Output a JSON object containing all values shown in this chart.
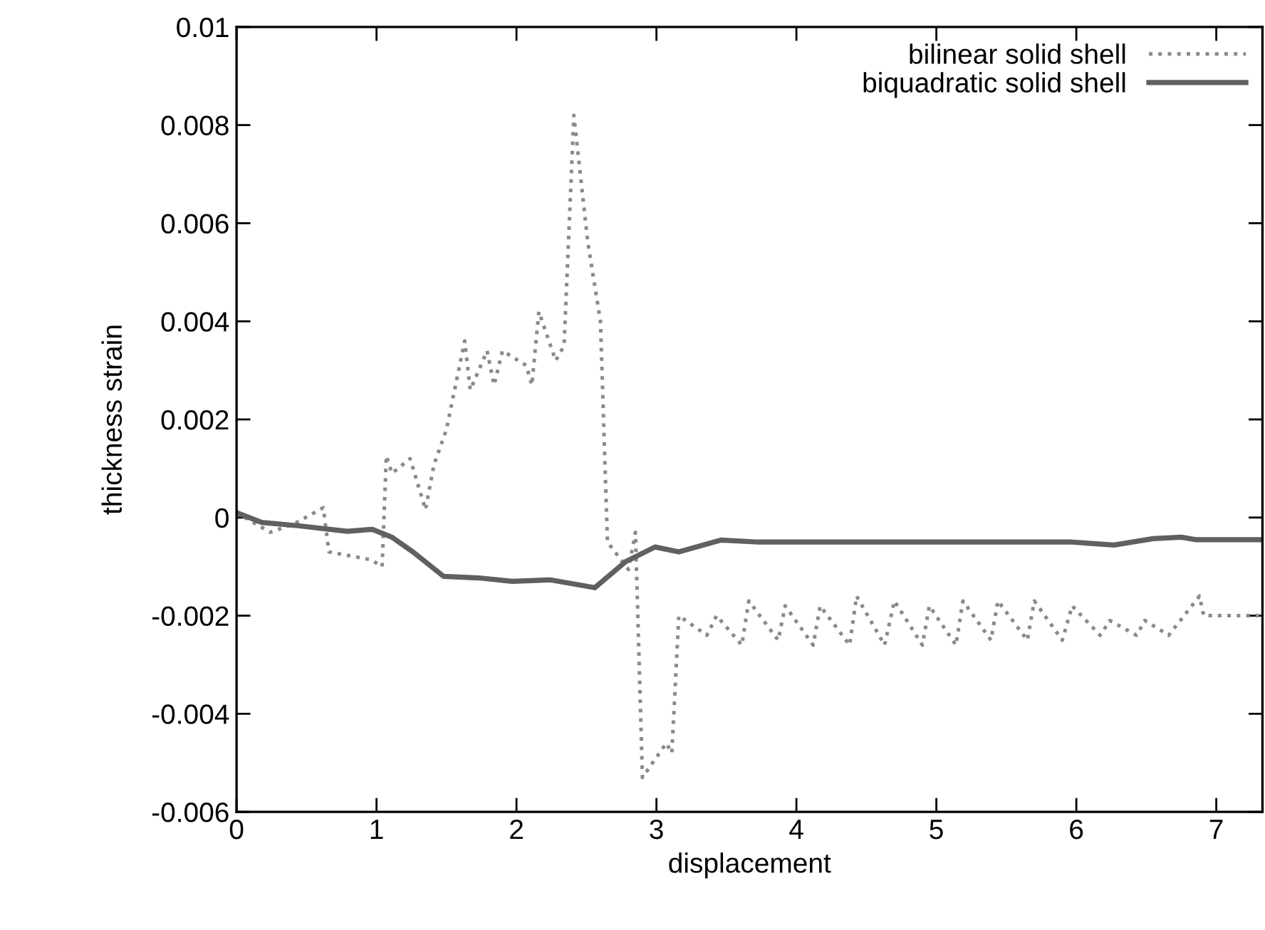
{
  "chart_data": {
    "type": "line",
    "xlabel": "displacement",
    "ylabel": "thickness strain",
    "xlim": [
      0,
      7.33
    ],
    "ylim": [
      -0.006,
      0.01
    ],
    "xticks": [
      0,
      1,
      2,
      3,
      4,
      5,
      6,
      7
    ],
    "yticks": [
      -0.006,
      -0.004,
      -0.002,
      0,
      0.002,
      0.004,
      0.006,
      0.008,
      0.01
    ],
    "grid": false,
    "legend": "top right",
    "marker": "none",
    "series": [
      {
        "name": "bilinear solid shell",
        "color": "#8a8a8a",
        "line_style": "dotted",
        "x": [
          0,
          0.24,
          0.41,
          0.62,
          0.66,
          0.96,
          1.04,
          1.07,
          1.11,
          1.24,
          1.35,
          1.41,
          1.5,
          1.63,
          1.67,
          1.79,
          1.84,
          1.9,
          2.07,
          2.11,
          2.16,
          2.28,
          2.34,
          2.41,
          2.51,
          2.6,
          2.65,
          2.8,
          2.85,
          2.9,
          3.07,
          3.11,
          3.16,
          3.36,
          3.43,
          3.61,
          3.66,
          3.87,
          3.92,
          4.12,
          4.17,
          4.38,
          4.43,
          4.63,
          4.7,
          4.9,
          4.95,
          5.14,
          5.19,
          5.39,
          5.44,
          5.65,
          5.7,
          5.9,
          5.97,
          6.17,
          6.24,
          6.43,
          6.49,
          6.66,
          6.88,
          6.91,
          7.32
        ],
        "values": [
          0.0001,
          -0.0003,
          -0.00013,
          0.0002,
          -0.0007,
          -0.00086,
          -0.001,
          0.00126,
          0.0009,
          0.0012,
          0.00016,
          0.00107,
          0.0018,
          0.0036,
          0.0026,
          0.0034,
          0.0027,
          0.0034,
          0.0031,
          0.0027,
          0.0042,
          0.0032,
          0.0035,
          0.0082,
          0.0056,
          0.004,
          -0.0005,
          -0.00106,
          -0.0003,
          -0.0053,
          -0.0046,
          -0.0048,
          -0.002,
          -0.0024,
          -0.002,
          -0.0026,
          -0.0017,
          -0.0025,
          -0.0018,
          -0.0026,
          -0.0018,
          -0.0026,
          -0.0016,
          -0.0026,
          -0.0017,
          -0.0026,
          -0.0018,
          -0.0026,
          -0.0017,
          -0.0025,
          -0.0017,
          -0.0025,
          -0.0017,
          -0.0025,
          -0.0018,
          -0.0024,
          -0.0021,
          -0.0024,
          -0.0021,
          -0.0024,
          -0.0016,
          -0.002,
          -0.002
        ]
      },
      {
        "name": "biquadratic solid shell",
        "color": "#606060",
        "line_style": "solid",
        "x": [
          0,
          0.18,
          0.45,
          0.79,
          0.97,
          1.11,
          1.26,
          1.48,
          1.73,
          1.97,
          2.24,
          2.56,
          2.78,
          2.99,
          3.16,
          3.46,
          3.73,
          4.92,
          5.97,
          6.27,
          6.55,
          6.75,
          6.85,
          7.32
        ],
        "values": [
          0.0001,
          -0.0001,
          -0.00017,
          -0.00028,
          -0.00024,
          -0.0004,
          -0.0007,
          -0.0012,
          -0.00123,
          -0.0013,
          -0.00127,
          -0.00143,
          -0.0009,
          -0.0006,
          -0.0007,
          -0.00046,
          -0.0005,
          -0.0005,
          -0.0005,
          -0.00056,
          -0.00043,
          -0.0004,
          -0.00045,
          -0.00045
        ]
      }
    ]
  }
}
